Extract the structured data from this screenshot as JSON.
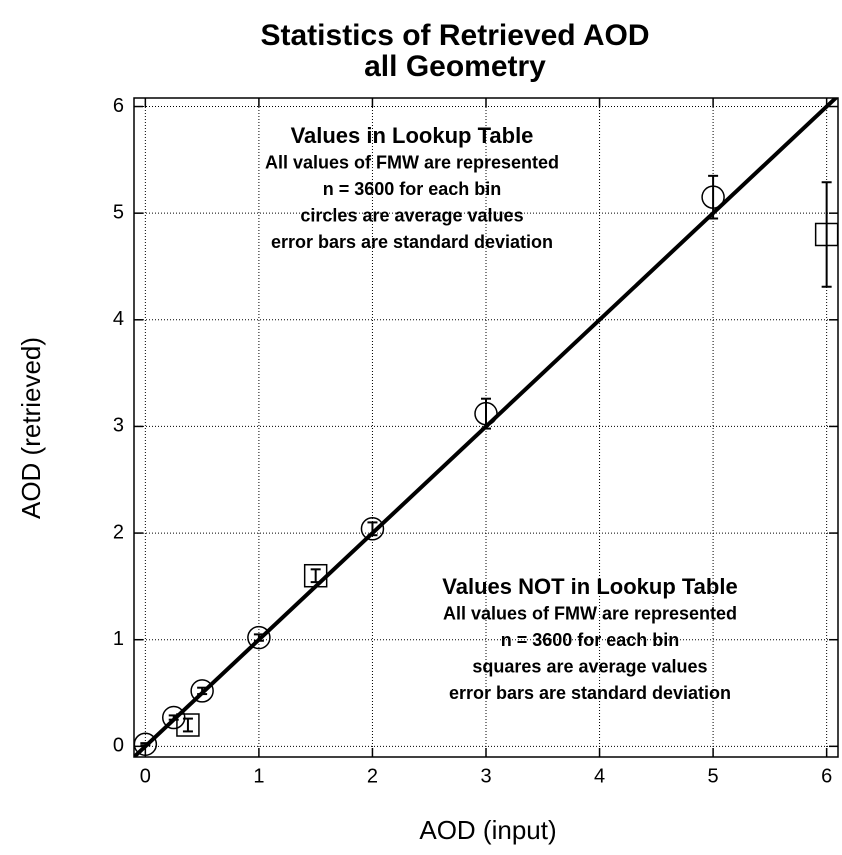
{
  "chart_data": {
    "type": "scatter",
    "title": [
      "Statistics of Retrieved AOD",
      "all Geometry"
    ],
    "x_label": "AOD (input)",
    "y_label": "AOD (retrieved)",
    "xlim": [
      -0.1,
      6.1
    ],
    "ylim": [
      -0.1,
      6.08
    ],
    "xticks": [
      0,
      1,
      2,
      3,
      4,
      5,
      6
    ],
    "yticks": [
      0,
      1,
      2,
      3,
      4,
      5,
      6
    ],
    "grid": true,
    "series": [
      {
        "marker": "circle",
        "color": "#000000",
        "x": [
          0,
          0.25,
          0.5,
          1,
          2,
          3,
          5
        ],
        "values": [
          0.02,
          0.27,
          0.52,
          1.02,
          2.04,
          3.12,
          5.15
        ],
        "errors": [
          0.01,
          0.02,
          0.03,
          0.03,
          0.06,
          0.14,
          0.2
        ]
      },
      {
        "marker": "square",
        "color": "#000000",
        "x": [
          0.375,
          1.5,
          6
        ],
        "values": [
          0.2,
          1.6,
          4.8
        ],
        "errors": [
          0.06,
          0.06,
          0.49
        ]
      }
    ],
    "reference_line": {
      "color": "#000000",
      "x": [
        -0.1,
        6.1
      ],
      "values": [
        -0.1,
        6.1
      ]
    },
    "annotations": [
      [
        "Values in Lookup Table",
        "All values of FMW are represented",
        "n = 3600 for each bin",
        "circles are average values",
        "error bars are standard deviation"
      ],
      [
        "Values NOT in Lookup Table",
        "All values of FMW are represented",
        "n = 3600 for each bin",
        "squares are average values",
        "error bars are standard deviation"
      ]
    ]
  }
}
